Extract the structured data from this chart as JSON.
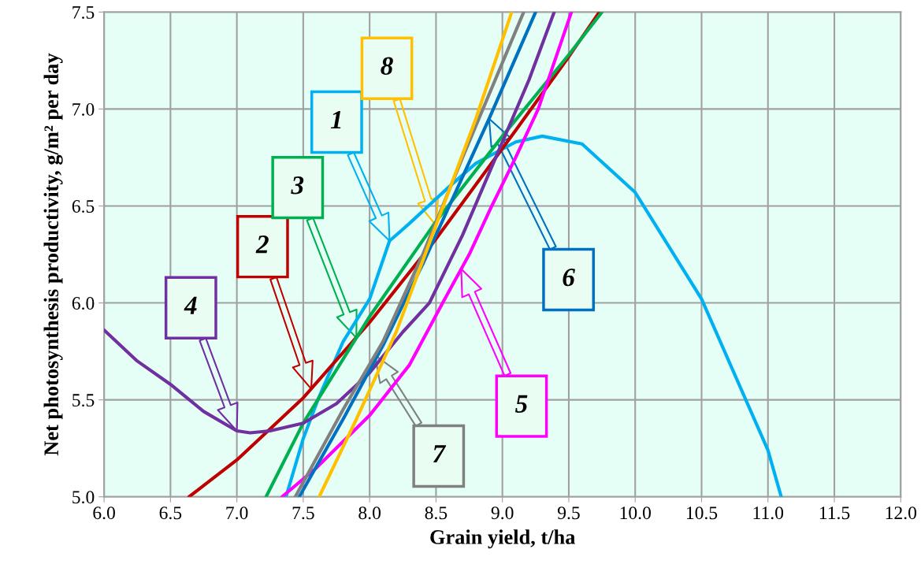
{
  "chart_data": {
    "type": "line",
    "xlabel": "Grain yield, t/ha",
    "ylabel": "Net photosynthesis productivity, g/m² per day",
    "xlim": [
      6,
      12
    ],
    "ylim": [
      5,
      7.5
    ],
    "xticks": [
      {
        "value": 6,
        "label": "6.0"
      },
      {
        "value": 6.5,
        "label": "6.5"
      },
      {
        "value": 7,
        "label": "7.0"
      },
      {
        "value": 7.5,
        "label": "7.5"
      },
      {
        "value": 8,
        "label": "8.0"
      },
      {
        "value": 8.5,
        "label": "8.5"
      },
      {
        "value": 9,
        "label": "9.0"
      },
      {
        "value": 9.5,
        "label": "9.5"
      },
      {
        "value": 10,
        "label": "10.0"
      },
      {
        "value": 10.5,
        "label": "10.5"
      },
      {
        "value": 11,
        "label": "11.0"
      },
      {
        "value": 11.5,
        "label": "11.5"
      },
      {
        "value": 12,
        "label": "12.0"
      }
    ],
    "yticks": [
      {
        "value": 5,
        "label": "5.0"
      },
      {
        "value": 5.5,
        "label": "5.5"
      },
      {
        "value": 6,
        "label": "6.0"
      },
      {
        "value": 6.5,
        "label": "6.5"
      },
      {
        "value": 7,
        "label": "7.0"
      },
      {
        "value": 7.5,
        "label": "7.5"
      }
    ],
    "grid": true,
    "marker": "none",
    "line_style": "solid",
    "series": [
      {
        "name": "1",
        "color": "#00b0f0",
        "x": [
          7.37,
          7.5,
          7.61,
          7.8,
          8.0,
          8.15,
          8.3,
          8.6,
          8.8,
          9.1,
          9.3,
          9.6,
          10.0,
          10.5,
          11.0,
          11.1
        ],
        "values": [
          5.0,
          5.3,
          5.5,
          5.8,
          6.02,
          6.32,
          6.41,
          6.6,
          6.72,
          6.83,
          6.86,
          6.82,
          6.57,
          6.02,
          5.24,
          5.0
        ]
      },
      {
        "name": "2",
        "color": "#c00000",
        "x": [
          6.64,
          7.0,
          7.5,
          8.0,
          8.5,
          9.1,
          9.5,
          9.73
        ],
        "values": [
          5.0,
          5.19,
          5.51,
          5.9,
          6.33,
          6.89,
          7.27,
          7.5
        ]
      },
      {
        "name": "3",
        "color": "#00b050",
        "x": [
          7.22,
          7.5,
          8.0,
          8.5,
          9.0,
          9.5,
          9.75
        ],
        "values": [
          5.0,
          5.38,
          5.93,
          6.42,
          6.86,
          7.28,
          7.5
        ]
      },
      {
        "name": "4",
        "color": "#7030a0",
        "x": [
          6.0,
          6.25,
          6.5,
          6.75,
          7.0,
          7.1,
          7.25,
          7.5,
          7.75,
          8.0,
          8.25,
          8.45,
          8.7,
          8.9,
          9.2,
          9.39
        ],
        "values": [
          5.86,
          5.7,
          5.58,
          5.44,
          5.34,
          5.33,
          5.34,
          5.38,
          5.48,
          5.64,
          5.85,
          6.0,
          6.35,
          6.67,
          7.15,
          7.5
        ]
      },
      {
        "name": "5",
        "color": "#ff00ff",
        "x": [
          7.34,
          7.6,
          8.0,
          8.3,
          8.55,
          8.75,
          8.92,
          9.1,
          9.27,
          9.52
        ],
        "values": [
          5.0,
          5.15,
          5.42,
          5.68,
          6.0,
          6.25,
          6.5,
          6.75,
          7.0,
          7.5
        ]
      },
      {
        "name": "6",
        "color": "#0070c0",
        "x": [
          7.47,
          7.8,
          8.1,
          8.4,
          8.6,
          8.9,
          9.25
        ],
        "values": [
          5.0,
          5.4,
          5.78,
          6.2,
          6.5,
          6.95,
          7.5
        ]
      },
      {
        "name": "7",
        "color": "#808080",
        "x": [
          7.44,
          7.8,
          8.1,
          8.4,
          8.7,
          9.16
        ],
        "values": [
          5.0,
          5.45,
          5.8,
          6.25,
          6.75,
          7.5
        ]
      },
      {
        "name": "8",
        "color": "#ffc000",
        "x": [
          7.62,
          7.9,
          8.2,
          8.5,
          8.8,
          9.07
        ],
        "values": [
          5.0,
          5.4,
          5.85,
          6.4,
          6.95,
          7.5
        ]
      }
    ]
  }
}
